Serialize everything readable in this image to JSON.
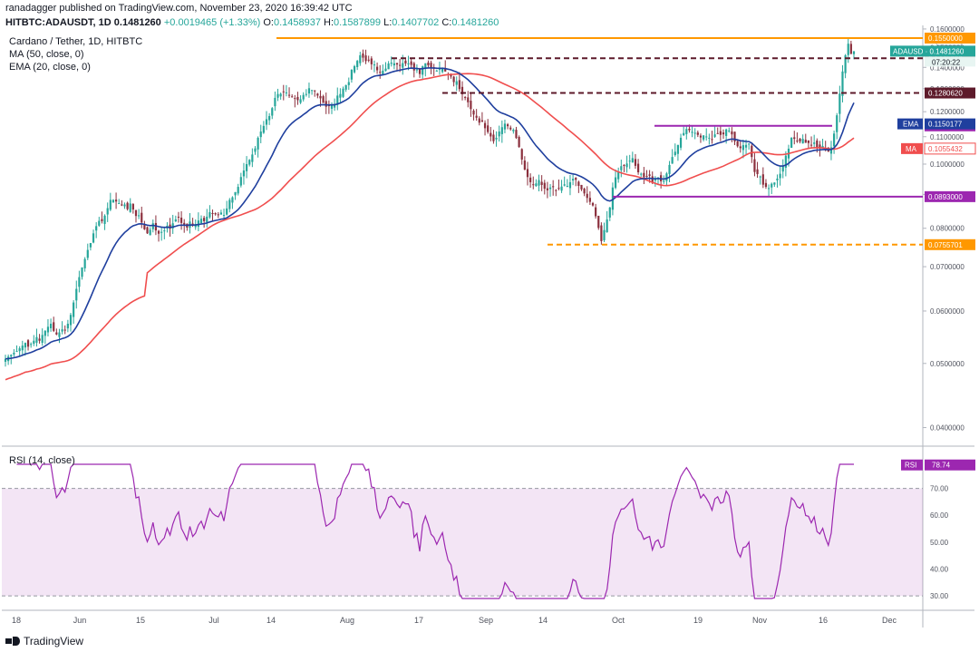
{
  "header": {
    "published": "ranadagger published on TradingView.com, November 23, 2020 16:39:42 UTC",
    "symbol": "HITBTC:ADAUSDT, 1D",
    "last": "0.1481260",
    "change": "+0.0019465 (+1.33%)",
    "o_label": "O:",
    "o": "0.1458937",
    "h_label": "H:",
    "h": "0.1587899",
    "l_label": "L:",
    "l": "0.1407702",
    "c_label": "C:",
    "c": "0.1481260"
  },
  "legend": {
    "title": "Cardano / Tether, 1D, HITBTC",
    "ma": "MA (50, close, 0)",
    "ema": "EMA (20, close, 0)",
    "rsi": "RSI (14, close)"
  },
  "brand": "TradingView",
  "colors": {
    "up": "#26a69a",
    "down": "#8b2f3d",
    "ema": "#1f3f9e",
    "ma": "#f04e4e",
    "orange": "#ff9800",
    "purple": "#9c27b0",
    "maroon": "#5d1a2a"
  },
  "chart_data": {
    "type": "candlestick",
    "price_scale_unit": "USDT",
    "y_ticks": [
      "0.1600000",
      "0.1500000",
      "0.1400000",
      "0.1300000",
      "0.1200000",
      "0.1100000",
      "0.1000000",
      "0.0900000",
      "0.0800000",
      "0.0700000",
      "0.0600000",
      "0.0500000",
      "0.0400000"
    ],
    "x_ticks": [
      "18",
      "Jun",
      "15",
      "Jul",
      "14",
      "Aug",
      "17",
      "Sep",
      "14",
      "Oct",
      "19",
      "Nov",
      "16",
      "Dec"
    ],
    "horizontal_levels": [
      {
        "value": 0.155,
        "label": "0.1550000",
        "style": "solid",
        "color": "#ff9800"
      },
      {
        "value": 0.1445,
        "label": "0.1445000",
        "style": "dashed",
        "color": "#5d1a2a"
      },
      {
        "value": 0.128062,
        "label": "0.1280620",
        "style": "dashed",
        "color": "#5d1a2a"
      },
      {
        "value": 0.1142241,
        "label": "0.1142241",
        "style": "solid",
        "color": "#9c27b0"
      },
      {
        "value": 0.0893,
        "label": "0.0893000",
        "style": "solid",
        "color": "#9c27b0"
      },
      {
        "value": 0.0755701,
        "label": "0.0755701",
        "style": "dashed",
        "color": "#ff9800"
      }
    ],
    "badges": {
      "price_label": "ADAUSD",
      "price": "0.1481260",
      "countdown": "07:20:22",
      "ema_label": "EMA",
      "ema_value": "0.1150177",
      "ma_label": "MA",
      "ma_value": "0.1055432"
    },
    "closes": [
      0.0508,
      0.0512,
      0.0515,
      0.0519,
      0.0522,
      0.0527,
      0.0532,
      0.0537,
      0.053,
      0.0535,
      0.0541,
      0.0548,
      0.0541,
      0.0552,
      0.056,
      0.0568,
      0.0574,
      0.056,
      0.0553,
      0.0557,
      0.0563,
      0.0561,
      0.0574,
      0.0592,
      0.0618,
      0.0648,
      0.0675,
      0.0698,
      0.0719,
      0.0742,
      0.076,
      0.0786,
      0.0806,
      0.0821,
      0.082,
      0.0836,
      0.0858,
      0.0883,
      0.0883,
      0.0878,
      0.0873,
      0.0866,
      0.0869,
      0.0855,
      0.0872,
      0.0854,
      0.0835,
      0.0837,
      0.0816,
      0.0797,
      0.0786,
      0.0796,
      0.0814,
      0.0794,
      0.0785,
      0.079,
      0.0794,
      0.0807,
      0.0799,
      0.0814,
      0.0825,
      0.0832,
      0.0815,
      0.0809,
      0.0802,
      0.0819,
      0.0808,
      0.0812,
      0.0822,
      0.0827,
      0.082,
      0.0833,
      0.0846,
      0.0842,
      0.084,
      0.0839,
      0.0845,
      0.0838,
      0.0857,
      0.0883,
      0.0891,
      0.0907,
      0.0924,
      0.0956,
      0.0978,
      0.1,
      0.1015,
      0.1034,
      0.1056,
      0.1096,
      0.112,
      0.1142,
      0.1169,
      0.1182,
      0.1215,
      0.1259,
      0.1276,
      0.1277,
      0.1284,
      0.1283,
      0.1272,
      0.1262,
      0.1255,
      0.1249,
      0.1253,
      0.1272,
      0.1276,
      0.1302,
      0.1294,
      0.1288,
      0.1269,
      0.1257,
      0.1237,
      0.1221,
      0.1224,
      0.1228,
      0.1233,
      0.1269,
      0.1276,
      0.13,
      0.1316,
      0.133,
      0.1388,
      0.1406,
      0.1432,
      0.146,
      0.1448,
      0.1431,
      0.1436,
      0.1415,
      0.1414,
      0.1386,
      0.1374,
      0.1384,
      0.1394,
      0.1419,
      0.1423,
      0.142,
      0.1414,
      0.141,
      0.1421,
      0.1419,
      0.1419,
      0.1412,
      0.1385,
      0.139,
      0.1368,
      0.1405,
      0.142,
      0.141,
      0.1397,
      0.1393,
      0.1384,
      0.1392,
      0.1399,
      0.138,
      0.1363,
      0.1356,
      0.133,
      0.1334,
      0.1298,
      0.1275,
      0.1261,
      0.124,
      0.1211,
      0.1188,
      0.1175,
      0.1155,
      0.1158,
      0.1133,
      0.1118,
      0.1101,
      0.1083,
      0.1096,
      0.112,
      0.1137,
      0.1151,
      0.1141,
      0.1129,
      0.1127,
      0.1095,
      0.1061,
      0.1016,
      0.0981,
      0.0956,
      0.0939,
      0.0931,
      0.0935,
      0.0946,
      0.093,
      0.0918,
      0.0913,
      0.0922,
      0.0923,
      0.0912,
      0.092,
      0.0925,
      0.0932,
      0.0927,
      0.0939,
      0.095,
      0.0947,
      0.0927,
      0.0916,
      0.0903,
      0.0889,
      0.0877,
      0.0866,
      0.0834,
      0.0801,
      0.0765,
      0.0795,
      0.0825,
      0.086,
      0.0922,
      0.0955,
      0.0973,
      0.0993,
      0.0994,
      0.1002,
      0.1012,
      0.1021,
      0.0994,
      0.0972,
      0.0967,
      0.0955,
      0.0958,
      0.096,
      0.0938,
      0.0951,
      0.0954,
      0.0942,
      0.0944,
      0.0968,
      0.0997,
      0.1025,
      0.1044,
      0.1069,
      0.1096,
      0.1114,
      0.113,
      0.1125,
      0.1119,
      0.1115,
      0.1107,
      0.1097,
      0.1105,
      0.1101,
      0.1096,
      0.1089,
      0.1109,
      0.1113,
      0.1107,
      0.1109,
      0.1128,
      0.1124,
      0.1109,
      0.1082,
      0.1064,
      0.1057,
      0.1068,
      0.1069,
      0.1074,
      0.1025,
      0.0973,
      0.0966,
      0.0958,
      0.0931,
      0.0924,
      0.092,
      0.0934,
      0.0938,
      0.0951,
      0.0967,
      0.0993,
      0.103,
      0.1055,
      0.1096,
      0.1092,
      0.1084,
      0.1082,
      0.1092,
      0.1077,
      0.1076,
      0.1068,
      0.1078,
      0.106,
      0.1057,
      0.1065,
      0.1053,
      0.1044,
      0.106,
      0.1112,
      0.1185,
      0.1278,
      0.138,
      0.146,
      0.152,
      0.1468,
      0.1481
    ],
    "rsi": {
      "value_label": "RSI",
      "value": "78.74",
      "ticks": [
        "70.00",
        "60.00",
        "50.00",
        "40.00",
        "30.00"
      ],
      "band": [
        30,
        70
      ]
    }
  }
}
